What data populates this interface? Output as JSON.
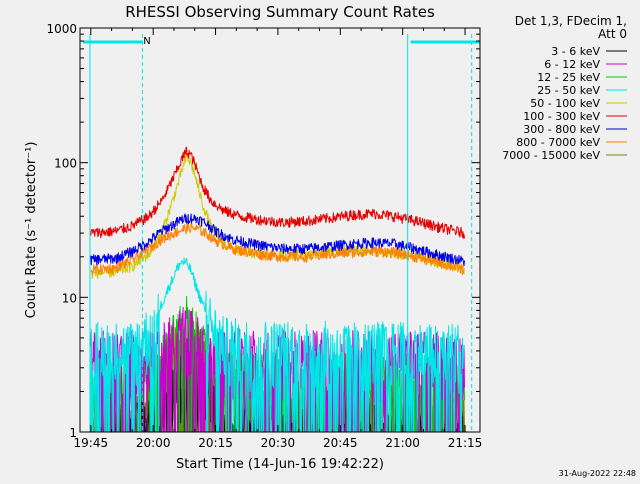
{
  "chart_data": {
    "type": "line",
    "title": "RHESSI Observing Summary Count Rates",
    "xlabel": "Start Time (14-Jun-16 19:42:22)",
    "ylabel": "Count Rate (s⁻¹ detector⁻¹)",
    "y_scale": "log",
    "ylim": [
      1,
      1000
    ],
    "xlim_minutes_after_1945": [
      -2.6,
      93.6
    ],
    "x_ticks": [
      {
        "label": "19:45",
        "minutes_after_1945": 0
      },
      {
        "label": "20:00",
        "minutes_after_1945": 15
      },
      {
        "label": "20:15",
        "minutes_after_1945": 30
      },
      {
        "label": "20:30",
        "minutes_after_1945": 45
      },
      {
        "label": "20:45",
        "minutes_after_1945": 60
      },
      {
        "label": "21:00",
        "minutes_after_1945": 75
      },
      {
        "label": "21:15",
        "minutes_after_1945": 90
      }
    ],
    "y_ticks": [
      {
        "label": "1",
        "value": 1
      },
      {
        "label": "10",
        "value": 10
      },
      {
        "label": "100",
        "value": 100
      },
      {
        "label": "1000",
        "value": 1000
      }
    ],
    "legend_header": [
      "Det 1,3, FDecim 1,",
      "Att 0"
    ],
    "legend_placement": "right",
    "series": [
      {
        "name": "3 - 6 keV",
        "color": "#000000",
        "x": [
          0,
          10,
          14,
          18,
          20,
          22,
          24,
          26,
          28,
          30,
          34,
          40,
          50,
          60,
          70,
          80,
          88,
          90
        ],
        "y": [
          1,
          1,
          1.4,
          1.7,
          2.2,
          2.6,
          2.7,
          2.5,
          2.0,
          1.6,
          1.3,
          1.2,
          1.2,
          1.2,
          1.2,
          1.1,
          1,
          1
        ]
      },
      {
        "name": "6 - 12 keV",
        "color": "#cc00cc",
        "x": [
          0,
          10,
          15,
          18,
          20,
          22,
          24,
          26,
          28,
          32,
          40,
          50,
          60,
          70,
          80,
          90
        ],
        "y": [
          3.6,
          3.7,
          3.9,
          4.3,
          5.0,
          5.6,
          5.3,
          4.6,
          4.1,
          3.8,
          3.8,
          3.7,
          3.7,
          3.7,
          3.6,
          3.6
        ]
      },
      {
        "name": "12 - 25 keV",
        "color": "#00cc00",
        "x": [
          0,
          10,
          15,
          18,
          20,
          22,
          23,
          24,
          26,
          28,
          32,
          40,
          50,
          60,
          70,
          80,
          90
        ],
        "y": [
          2.4,
          2.5,
          2.9,
          3.8,
          5.0,
          6.3,
          6.8,
          6.0,
          4.6,
          3.5,
          2.8,
          2.5,
          2.5,
          2.5,
          2.5,
          2.4,
          2.4
        ]
      },
      {
        "name": "25 - 50 keV",
        "color": "#00e5e5",
        "x": [
          0,
          10,
          14,
          16,
          18,
          20,
          21,
          22,
          23,
          24,
          25,
          26,
          28,
          30,
          32,
          40,
          50,
          60,
          70,
          80,
          90
        ],
        "y": [
          4.2,
          4.3,
          5.5,
          7.5,
          10.5,
          14.5,
          17,
          18.5,
          18,
          16,
          13,
          10.5,
          7.5,
          5.5,
          4.6,
          4.4,
          4.3,
          4.3,
          4.3,
          4.2,
          4.2
        ]
      },
      {
        "name": "50 - 100 keV",
        "color": "#cccc00",
        "x": [
          0,
          6,
          10,
          14,
          17,
          19,
          21,
          22,
          23,
          24,
          25,
          26,
          27,
          29,
          32,
          36,
          40,
          46,
          52,
          58,
          63,
          68,
          73,
          78,
          84,
          90
        ],
        "y": [
          15,
          15.5,
          17,
          21,
          30,
          45,
          70,
          90,
          110,
          100,
          82,
          62,
          48,
          33,
          25,
          22,
          21,
          20.5,
          21,
          22,
          22.5,
          22,
          21,
          20,
          18,
          16
        ]
      },
      {
        "name": "100 - 300 keV",
        "color": "#e60000",
        "x": [
          0,
          6,
          10,
          14,
          17,
          19,
          21,
          22,
          23,
          24,
          25,
          26,
          27,
          29,
          32,
          36,
          40,
          46,
          52,
          58,
          63,
          68,
          73,
          78,
          84,
          90
        ],
        "y": [
          30,
          31,
          34,
          40,
          52,
          68,
          92,
          108,
          122,
          115,
          98,
          80,
          66,
          52,
          44,
          40,
          38,
          36,
          37,
          39,
          41,
          42,
          40,
          37,
          33,
          30
        ]
      },
      {
        "name": "300 - 800 keV",
        "color": "#0000e6",
        "x": [
          0,
          6,
          10,
          14,
          17,
          20,
          22,
          24,
          26,
          28,
          30,
          34,
          40,
          46,
          52,
          58,
          63,
          68,
          73,
          78,
          84,
          90
        ],
        "y": [
          19,
          19.5,
          22,
          26,
          31,
          35,
          38,
          39,
          38,
          35,
          31,
          27,
          24.5,
          23,
          23,
          24,
          25,
          25.5,
          25,
          23,
          20.5,
          18.5
        ]
      },
      {
        "name": "800 - 7000 keV",
        "color": "#ff8000",
        "x": [
          0,
          6,
          10,
          14,
          17,
          20,
          22,
          24,
          26,
          28,
          30,
          34,
          40,
          46,
          52,
          58,
          63,
          68,
          73,
          78,
          84,
          90
        ],
        "y": [
          16,
          16.5,
          19,
          23,
          27,
          30,
          32,
          33,
          32,
          29.5,
          26.5,
          23,
          21,
          20,
          20,
          21,
          21.5,
          22,
          21.5,
          20,
          18,
          16
        ]
      },
      {
        "name": "7000 - 15000 keV",
        "color": "#808000",
        "x": [
          0,
          10,
          16,
          20,
          22,
          24,
          26,
          30,
          36,
          40,
          50,
          60,
          70,
          80,
          90
        ],
        "y": [
          1,
          1.3,
          2.5,
          3.8,
          4.3,
          4.5,
          4.0,
          3.0,
          2.3,
          2.0,
          2.0,
          2.0,
          2.0,
          1.8,
          1.5
        ]
      }
    ],
    "night_intervals_minutes_after_1945": [
      [
        -2.6,
        12.5
      ],
      [
        76.2,
        93.6
      ]
    ],
    "saa_intervals_minutes_after_1945": [],
    "markers": [
      {
        "label": "N",
        "minutes_after_1945": 13.5
      }
    ],
    "interval_lines_minutes_after_1945": [
      -0.2,
      12.4,
      76.2,
      91.6
    ],
    "grid": false
  },
  "footer_timestamp": "31-Aug-2022 22:48"
}
